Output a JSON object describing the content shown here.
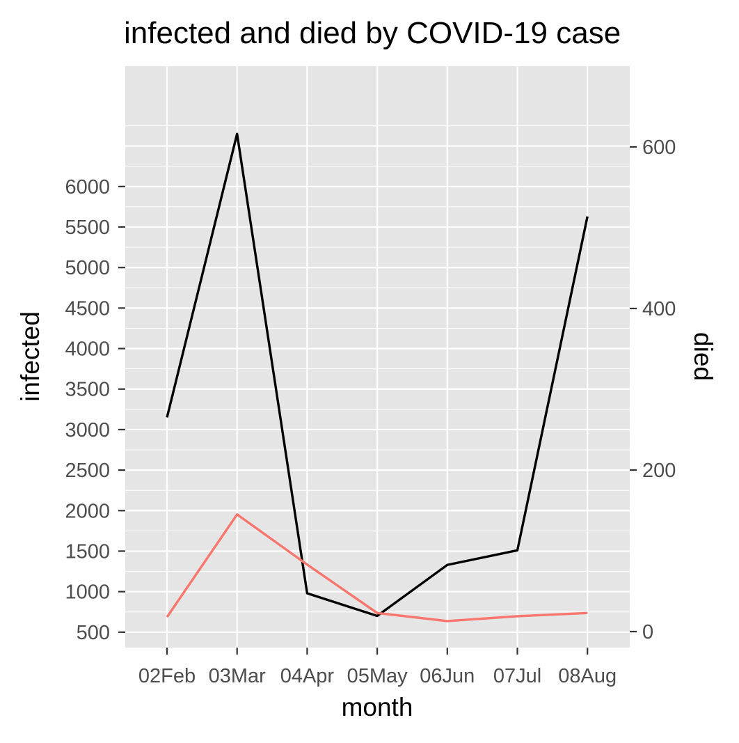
{
  "chart_data": {
    "type": "line",
    "title": "infected and died by COVID-19 case",
    "xlabel": "month",
    "ylabel": "infected",
    "y2label": "died",
    "categories": [
      "02Feb",
      "03Mar",
      "04Apr",
      "05May",
      "06Jun",
      "07Jul",
      "08Aug"
    ],
    "series": [
      {
        "axis": "left",
        "color": "#000000",
        "values": [
          3150,
          6650,
          980,
          700,
          1330,
          1510,
          5630
        ]
      },
      {
        "axis": "right",
        "color": "#F8766D",
        "values": [
          18,
          145,
          83,
          23,
          13,
          19,
          23
        ]
      }
    ],
    "y_ticks": [
      500,
      1000,
      1500,
      2000,
      2500,
      3000,
      3500,
      4000,
      4500,
      5000,
      5500,
      6000
    ],
    "y2_ticks": [
      0,
      200,
      400,
      600
    ],
    "ylim": [
      -200,
      7000
    ],
    "y2lim": [
      -20,
      680
    ],
    "grid": true,
    "legend": "none",
    "colors": {
      "panel": "#E5E5E5",
      "grid": "#FFFFFF",
      "tick_text": "#4D4D4D",
      "tick_mark": "#333333"
    }
  }
}
